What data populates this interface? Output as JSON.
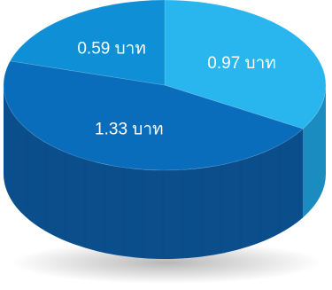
{
  "chart_data": {
    "type": "pie",
    "style": "3d",
    "title": "",
    "unit": "บาท",
    "slices": [
      {
        "label": "0.97 บาท",
        "value": 0.97,
        "color": "#29b6ef",
        "side_color": "#1a8cbf"
      },
      {
        "label": "1.33 บาท",
        "value": 1.33,
        "color": "#0a6dbb",
        "side_color": "#0a4f8c"
      },
      {
        "label": "0.59 บาท",
        "value": 0.59,
        "color": "#0f8fd6",
        "side_color": "#0b6aa4"
      }
    ],
    "legend": "none",
    "grid": false
  }
}
